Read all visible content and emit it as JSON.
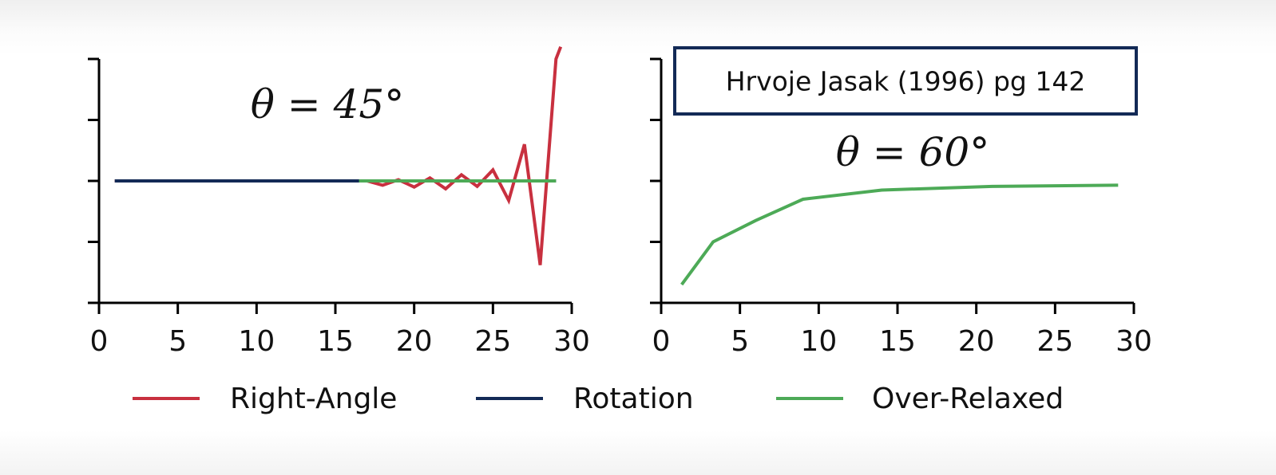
{
  "chart_data": [
    {
      "type": "line",
      "annotation": "θ = 45°",
      "xlim": [
        0,
        30
      ],
      "x_ticks": [
        "0",
        "5",
        "10",
        "15",
        "20",
        "25",
        "30"
      ],
      "ylim": [
        -2,
        2
      ],
      "y_ticks": [
        -2,
        -1,
        0,
        1,
        2
      ],
      "y_tick_labels_shown": false,
      "grid": false,
      "series": [
        {
          "name": "Right-Angle",
          "color": "#c8303f",
          "x": [
            1,
            2,
            3,
            4,
            5,
            6,
            7,
            8,
            9,
            10,
            11,
            12,
            13,
            14,
            15,
            16,
            17,
            18,
            19,
            20,
            21,
            22,
            23,
            24,
            25,
            26,
            27,
            28,
            29,
            29.3
          ],
          "y": [
            0,
            0,
            0,
            0,
            0,
            0,
            0,
            0,
            0,
            0,
            0,
            0,
            0,
            0,
            0,
            0,
            0,
            -0.07,
            0.02,
            -0.1,
            0.05,
            -0.13,
            0.1,
            -0.09,
            0.18,
            -0.32,
            0.6,
            -1.38,
            2.0,
            2.2
          ]
        },
        {
          "name": "Rotation",
          "color": "#132a56",
          "x": [
            1,
            29
          ],
          "y": [
            0,
            0
          ]
        },
        {
          "name": "Over-Relaxed",
          "color": "#4daa57",
          "x": [
            16.5,
            29
          ],
          "y": [
            0,
            0
          ]
        }
      ]
    },
    {
      "type": "line",
      "annotation": "θ = 60°",
      "xlim": [
        0,
        30
      ],
      "x_ticks": [
        "0",
        "5",
        "10",
        "15",
        "20",
        "25",
        "30"
      ],
      "ylim": [
        -2,
        2
      ],
      "y_ticks": [
        -2,
        -1,
        0,
        1,
        2
      ],
      "y_tick_labels_shown": false,
      "grid": false,
      "citation": "Hrvoje Jasak (1996) pg 142",
      "series": [
        {
          "name": "Over-Relaxed",
          "color": "#4daa57",
          "x": [
            1.3,
            3.3,
            6,
            9,
            14,
            21,
            29
          ],
          "y": [
            -1.7,
            -1.0,
            -0.65,
            -0.3,
            -0.15,
            -0.09,
            -0.07
          ]
        }
      ]
    }
  ],
  "legend": {
    "placement": "bottom",
    "items": [
      {
        "label": "Right-Angle",
        "color": "#c8303f"
      },
      {
        "label": "Rotation",
        "color": "#132a56"
      },
      {
        "label": "Over-Relaxed",
        "color": "#4daa57"
      }
    ]
  }
}
